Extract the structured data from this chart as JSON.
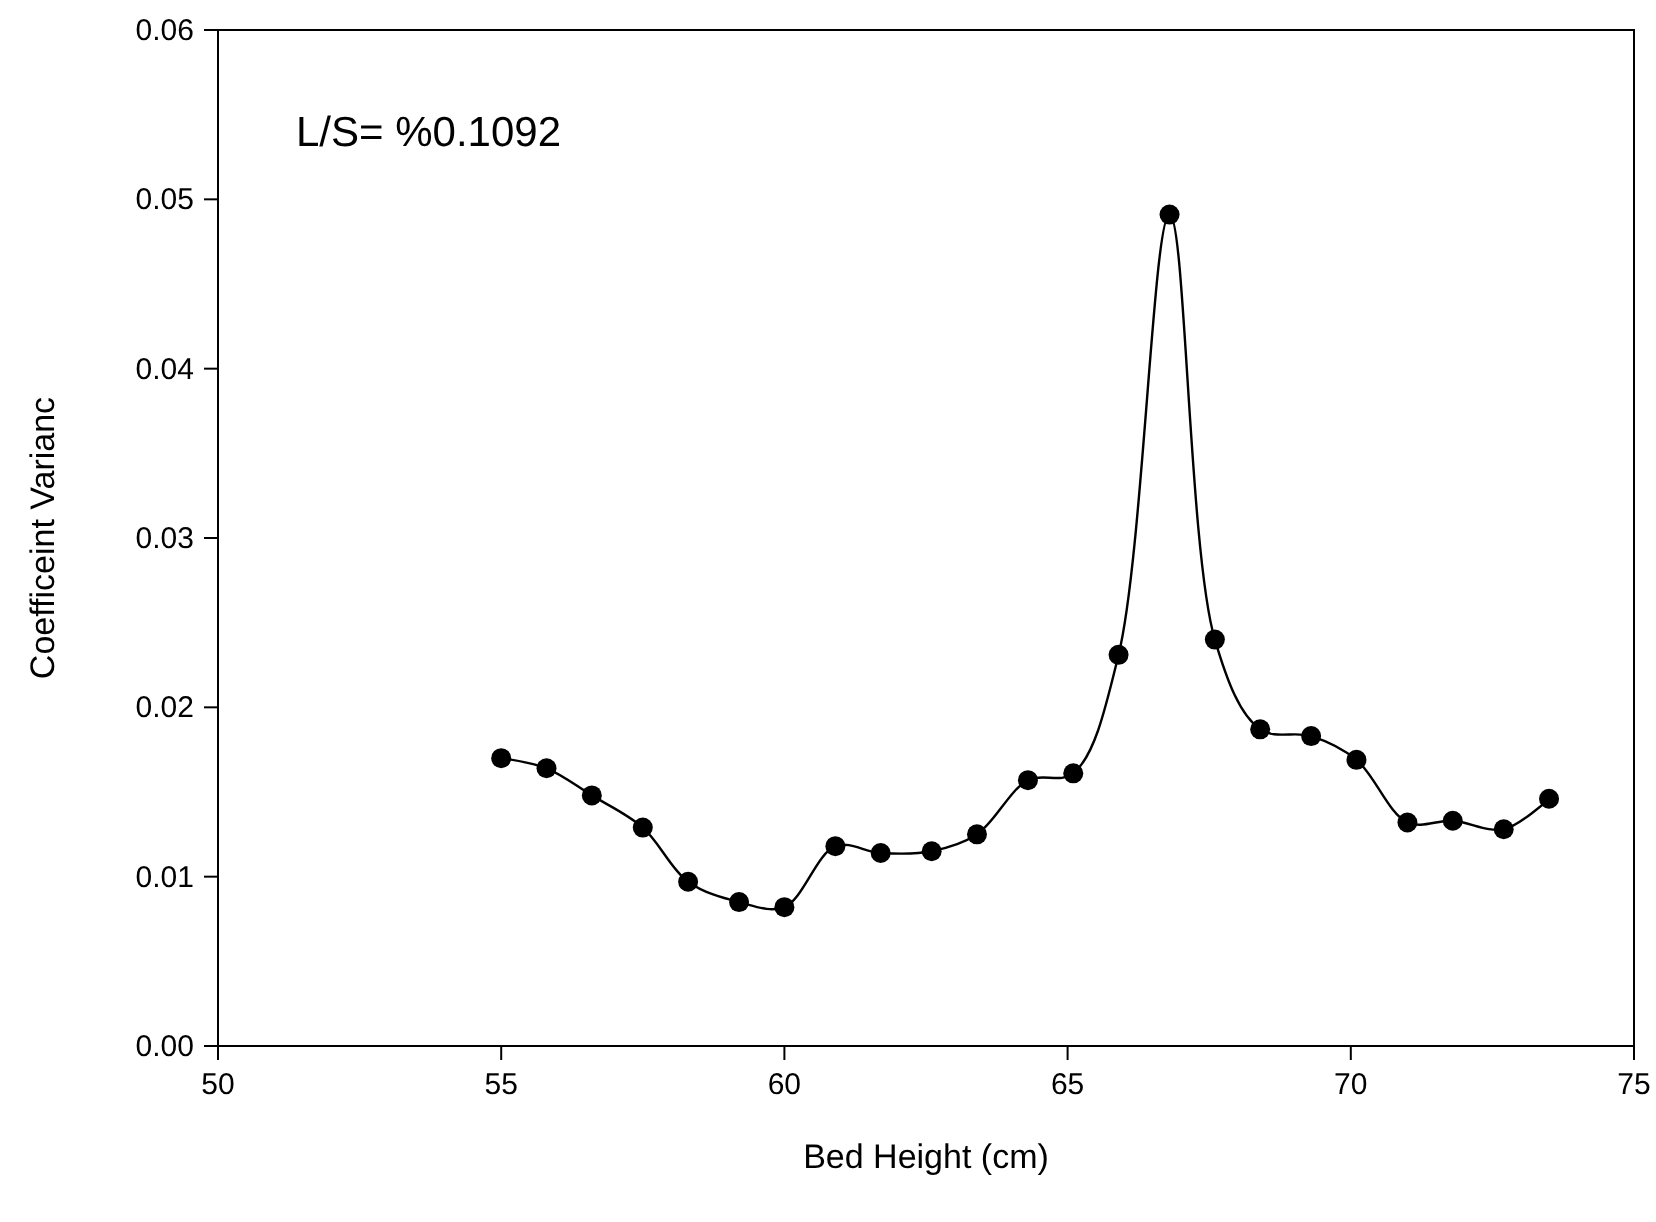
{
  "chart_data": {
    "type": "line",
    "xlabel": "Bed Height (cm)",
    "ylabel": "Coefficeint Varianc",
    "annotations": [
      "L/S= %0.1092"
    ],
    "x": [
      55.0,
      55.8,
      56.6,
      57.5,
      58.3,
      59.2,
      60.0,
      60.9,
      61.7,
      62.6,
      63.4,
      64.3,
      65.1,
      65.9,
      66.8,
      67.6,
      68.4,
      69.3,
      70.1,
      71.0,
      71.8,
      72.7,
      73.5
    ],
    "series": [
      {
        "color": "#000000",
        "values": [
          0.017,
          0.0164,
          0.0148,
          0.0129,
          0.0097,
          0.0085,
          0.0082,
          0.0118,
          0.0114,
          0.0115,
          0.0125,
          0.0157,
          0.0161,
          0.0231,
          0.0491,
          0.024,
          0.0187,
          0.0183,
          0.0169,
          0.0132,
          0.0133,
          0.0128,
          0.0146
        ]
      }
    ],
    "xlim": [
      50,
      75
    ],
    "xticks": [
      50,
      55,
      60,
      65,
      70,
      75
    ],
    "ylim": [
      0,
      0.06
    ],
    "yticks": [
      {
        "value": 0,
        "label": "0.00"
      },
      {
        "value": 0.01,
        "label": "0.01"
      },
      {
        "value": 0.02,
        "label": "0.02"
      },
      {
        "value": 0.03,
        "label": "0.03"
      },
      {
        "value": 0.04,
        "label": "0.04"
      },
      {
        "value": 0.05,
        "label": "0.05"
      },
      {
        "value": 0.06,
        "label": "0.06"
      }
    ],
    "grid": false,
    "marker": "circle",
    "line_style": "solid"
  }
}
